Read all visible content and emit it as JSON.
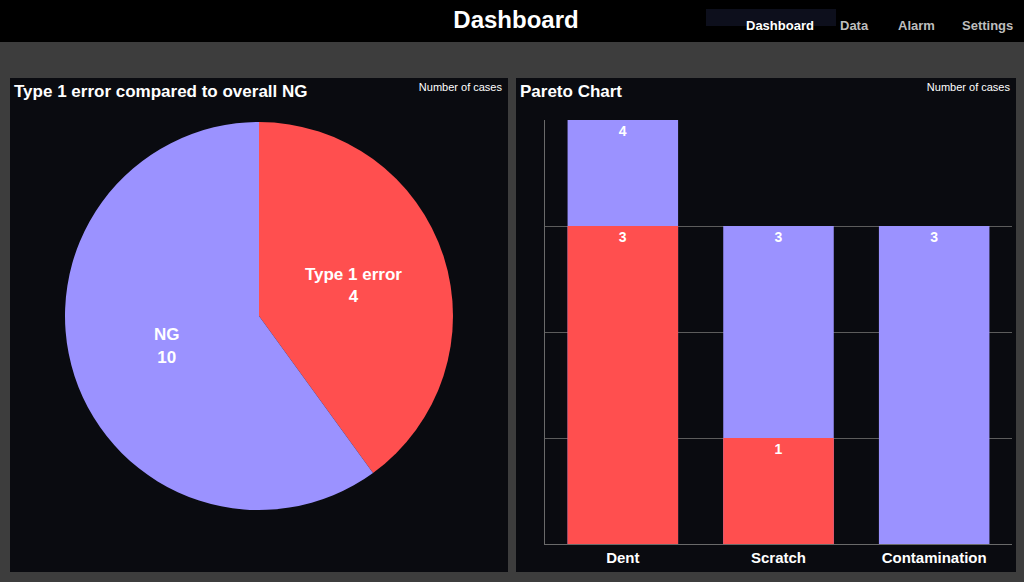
{
  "page": {
    "title": "Dashboard",
    "nav": [
      "Dashboard",
      "Data",
      "Alarm",
      "Settings"
    ]
  },
  "chart_data": [
    {
      "type": "pie",
      "title": "Type 1 error compared to overall NG",
      "subtitle": "Number of cases",
      "part": {
        "name": "Type 1 error",
        "value": 4,
        "color": "#ff4f4f"
      },
      "whole": {
        "name": "NG",
        "value": 10,
        "color": "#9b92ff"
      },
      "data_labels": true
    },
    {
      "type": "bar",
      "title": "Pareto Chart",
      "subtitle": "Number of cases",
      "categories": [
        "Dent",
        "Scratch",
        "Contamination"
      ],
      "series": [
        {
          "color": "#9b92ff",
          "values": [
            4,
            3,
            3
          ]
        },
        {
          "color": "#ff4f4f",
          "values": [
            3,
            1,
            null
          ]
        }
      ],
      "ylim": [
        0,
        4
      ],
      "yticks": [
        0,
        1,
        2,
        3,
        4
      ],
      "grid": true,
      "stacked": false,
      "data_labels": true,
      "tick_labels": "x"
    }
  ]
}
